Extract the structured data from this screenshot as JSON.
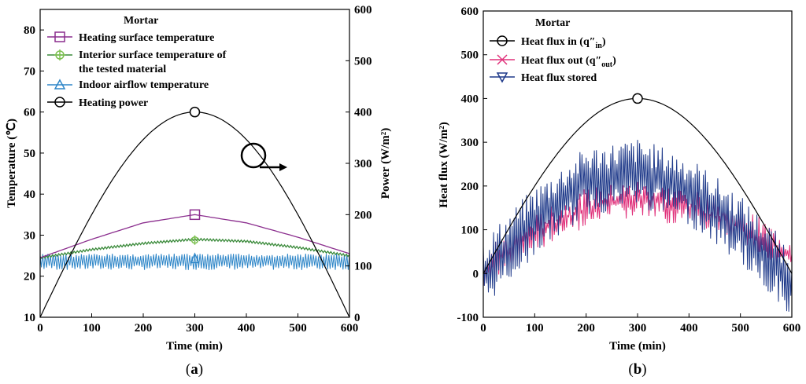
{
  "chart_data": [
    {
      "panel": "a",
      "panel_label": {
        "open": "(",
        "letter": "a",
        "close": ")"
      },
      "type": "line",
      "legend_title": "Mortar",
      "xlabel": "Time (min)",
      "ylabel": "Temperature (℃)",
      "y2label": "Power (W/m²)",
      "xlim": [
        0,
        600
      ],
      "ylim": [
        10,
        85
      ],
      "y2lim": [
        0,
        600
      ],
      "xticks": [
        0,
        100,
        200,
        300,
        400,
        500,
        600
      ],
      "yticks": [
        10,
        20,
        30,
        40,
        50,
        60,
        70,
        80
      ],
      "y2ticks": [
        0,
        100,
        200,
        300,
        400,
        500,
        600
      ],
      "series": [
        {
          "name": "Heating surface temperature",
          "axis": "left",
          "color": "#8B2E8E",
          "marker": "square",
          "x": [
            0,
            100,
            200,
            300,
            400,
            500,
            600
          ],
          "values": [
            24.5,
            29,
            33,
            35,
            33,
            29.5,
            25.5
          ]
        },
        {
          "name": "Interior surface temperature of",
          "name_line2": "the tested material",
          "axis": "left",
          "color": "#3A8A3A",
          "marker": "cross",
          "x": [
            0,
            100,
            200,
            300,
            400,
            500,
            600
          ],
          "values": [
            24.5,
            26.5,
            28,
            29,
            28.5,
            27,
            25
          ]
        },
        {
          "name": "Indoor airflow temperature",
          "axis": "left",
          "color": "#2E86C8",
          "marker": "triangle",
          "x": [
            0,
            600
          ],
          "values": [
            24,
            24
          ],
          "noise_range": [
            21.5,
            25.5
          ]
        },
        {
          "name": "Heating power",
          "axis": "right",
          "color": "#000000",
          "marker": "circle",
          "x": [
            0,
            100,
            200,
            300,
            400,
            500,
            600
          ],
          "values": [
            0,
            200,
            346,
            400,
            346,
            200,
            0
          ]
        }
      ]
    },
    {
      "panel": "b",
      "panel_label": {
        "open": "(",
        "letter": "b",
        "close": ")"
      },
      "type": "line",
      "legend_title": "Mortar",
      "xlabel": "Time (min)",
      "ylabel": "Heat flux (W/m²)",
      "xlim": [
        0,
        600
      ],
      "ylim": [
        -100,
        600
      ],
      "xticks": [
        0,
        100,
        200,
        300,
        400,
        500,
        600
      ],
      "yticks": [
        -100,
        0,
        100,
        200,
        300,
        400,
        500,
        600
      ],
      "series": [
        {
          "name": "Heat flux in (q″",
          "name_sub": "in",
          "name_close": ")",
          "color": "#000000",
          "marker": "circle",
          "x": [
            0,
            100,
            200,
            300,
            400,
            500,
            600
          ],
          "values": [
            0,
            200,
            346,
            400,
            346,
            200,
            0
          ]
        },
        {
          "name": "Heat flux out (q″",
          "name_sub": "out",
          "name_close": ")",
          "color": "#E0307A",
          "marker": "x",
          "x": [
            0,
            100,
            200,
            300,
            400,
            500,
            600
          ],
          "values": [
            10,
            90,
            150,
            170,
            150,
            110,
            40
          ],
          "noise": 45
        },
        {
          "name": "Heat flux stored",
          "color": "#1F3A8A",
          "marker": "triangle-down",
          "x": [
            0,
            100,
            200,
            300,
            400,
            500,
            600
          ],
          "values": [
            0,
            120,
            210,
            230,
            190,
            100,
            -20
          ],
          "noise": 60
        }
      ]
    }
  ]
}
